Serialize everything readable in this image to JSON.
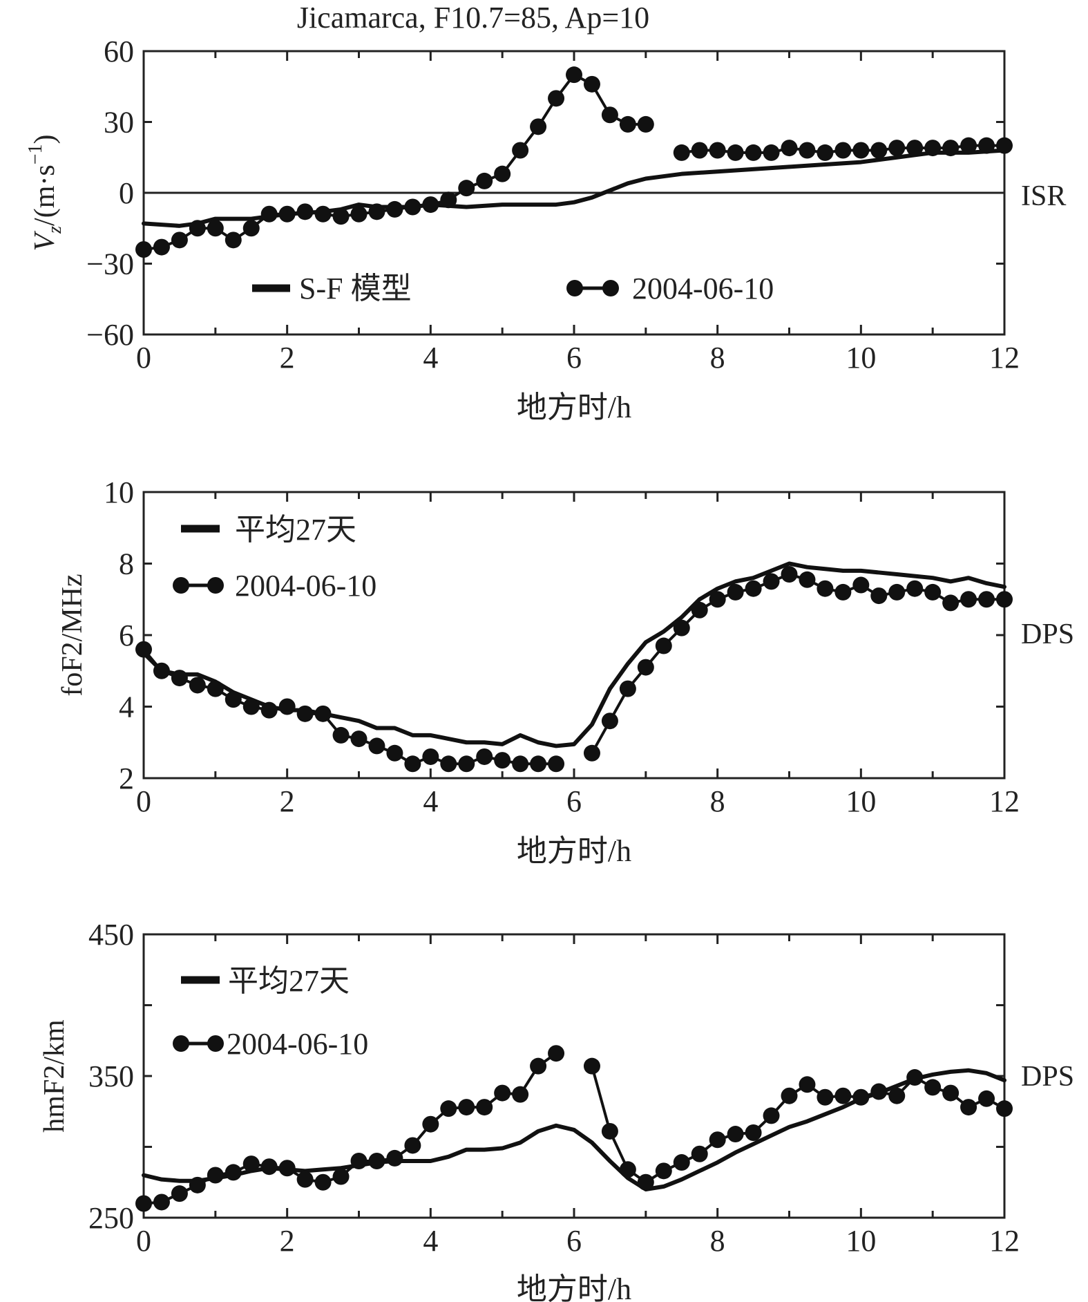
{
  "title": "Jicamarca, F10.7=85, Ap=10",
  "chart_data": [
    {
      "type": "line",
      "ylabel": "V_z/(m·s^-1)",
      "ylabel_main": "V",
      "ylabel_sub": "z",
      "ylabel_unit": "/(m·s",
      "ylabel_sup": "−1",
      "ylabel_close": ")",
      "xlabel": "地方时/h",
      "xlim": [
        0,
        12
      ],
      "ylim": [
        -60,
        60
      ],
      "xticks": [
        "0",
        "2",
        "4",
        "6",
        "8",
        "10",
        "12"
      ],
      "yticks": [
        "−60",
        "−30",
        "0",
        "30",
        "60"
      ],
      "source_label": "ISR",
      "zero_line": true,
      "series": [
        {
          "name": "S-F 模型",
          "style": "line",
          "x": [
            0,
            0.5,
            0.75,
            1.0,
            1.25,
            1.5,
            1.75,
            2.0,
            2.5,
            2.75,
            3.0,
            3.25,
            3.5,
            3.75,
            4.0,
            4.5,
            5.0,
            5.5,
            5.75,
            6.0,
            6.25,
            6.5,
            6.75,
            7.0,
            7.5,
            8.0,
            9.0,
            9.5,
            10.0,
            10.5,
            11.0,
            11.5,
            12.0
          ],
          "y": [
            -13,
            -14,
            -13,
            -11,
            -11,
            -11,
            -10,
            -9,
            -8,
            -7,
            -5,
            -6,
            -6,
            -6,
            -5,
            -6,
            -5,
            -5,
            -5,
            -4,
            -2,
            1,
            4,
            6,
            8,
            9,
            11,
            12,
            13,
            15,
            17,
            17,
            18
          ]
        },
        {
          "name": "2004-06-10",
          "style": "line-marker",
          "segments": [
            {
              "x": [
                0,
                0.25,
                0.5,
                0.75,
                1.0,
                1.25,
                1.5,
                1.75,
                2.0,
                2.25,
                2.5,
                2.75,
                3.0,
                3.25,
                3.5,
                3.75,
                4.0,
                4.25,
                4.5,
                4.75,
                5.0,
                5.25,
                5.5,
                5.75,
                6.0,
                6.25,
                6.5,
                6.75,
                7.0
              ],
              "y": [
                -24,
                -23,
                -20,
                -15,
                -15,
                -20,
                -15,
                -9,
                -9,
                -8,
                -9,
                -10,
                -9,
                -8,
                -7,
                -6,
                -5,
                -3,
                2,
                5,
                8,
                18,
                28,
                40,
                50,
                46,
                33,
                29,
                29
              ]
            },
            {
              "x": [
                7.5,
                7.75,
                8.0,
                8.25,
                8.5,
                8.75,
                9.0,
                9.25,
                9.5,
                9.75,
                10.0,
                10.25,
                10.5,
                10.75,
                11.0,
                11.25,
                11.5,
                11.75,
                12.0
              ],
              "y": [
                17,
                18,
                18,
                17,
                17,
                17,
                19,
                18,
                17,
                18,
                18,
                18,
                19,
                19,
                19,
                19,
                20,
                20,
                20
              ]
            }
          ]
        }
      ],
      "legend": [
        {
          "label": "S-F 模型",
          "style": "line"
        },
        {
          "label": "2004-06-10",
          "style": "line-marker"
        }
      ],
      "legend_placement": "bottom, horizontal"
    },
    {
      "type": "line",
      "ylabel": "foF2/MHz",
      "xlabel": "地方时/h",
      "xlim": [
        0,
        12
      ],
      "ylim": [
        2,
        10
      ],
      "xticks": [
        "0",
        "2",
        "4",
        "6",
        "8",
        "10",
        "12"
      ],
      "yticks": [
        "2",
        "4",
        "6",
        "8",
        "10"
      ],
      "source_label": "DPS",
      "series": [
        {
          "name": "平均27天",
          "style": "line",
          "x": [
            0,
            0.25,
            0.5,
            0.75,
            1.0,
            1.25,
            1.5,
            1.75,
            2.0,
            2.25,
            2.5,
            2.75,
            3.0,
            3.25,
            3.5,
            3.75,
            4.0,
            4.25,
            4.5,
            4.75,
            5.0,
            5.25,
            5.5,
            5.75,
            6.0,
            6.25,
            6.5,
            6.75,
            7.0,
            7.25,
            7.5,
            7.75,
            8.0,
            8.25,
            8.5,
            8.75,
            9.0,
            9.25,
            9.5,
            9.75,
            10.0,
            10.25,
            10.5,
            10.75,
            11.0,
            11.25,
            11.5,
            11.75,
            12.0
          ],
          "y": [
            5.5,
            5.0,
            4.9,
            4.9,
            4.7,
            4.4,
            4.2,
            4.0,
            3.9,
            3.9,
            3.8,
            3.7,
            3.6,
            3.4,
            3.4,
            3.2,
            3.2,
            3.1,
            3.0,
            3.0,
            2.95,
            3.2,
            3.0,
            2.9,
            2.95,
            3.5,
            4.5,
            5.2,
            5.8,
            6.1,
            6.5,
            7.0,
            7.3,
            7.5,
            7.6,
            7.8,
            8.0,
            7.9,
            7.85,
            7.8,
            7.8,
            7.75,
            7.7,
            7.65,
            7.6,
            7.5,
            7.6,
            7.45,
            7.35
          ]
        },
        {
          "name": "2004-06-10",
          "style": "line-marker",
          "segments": [
            {
              "x": [
                0,
                0.25,
                0.5,
                0.75,
                1.0,
                1.25,
                1.5,
                1.75,
                2.0,
                2.25,
                2.5,
                2.75,
                3.0,
                3.25,
                3.5,
                3.75,
                4.0,
                4.25,
                4.5,
                4.75,
                5.0,
                5.25,
                5.5,
                5.75
              ],
              "y": [
                5.6,
                5.0,
                4.8,
                4.6,
                4.5,
                4.2,
                4.0,
                3.9,
                4.0,
                3.8,
                3.8,
                3.2,
                3.1,
                2.9,
                2.7,
                2.4,
                2.6,
                2.4,
                2.4,
                2.6,
                2.5,
                2.4,
                2.4,
                2.4
              ]
            },
            {
              "x": [
                6.25,
                6.5,
                6.75,
                7.0,
                7.25,
                7.5,
                7.75,
                8.0,
                8.25,
                8.5,
                8.75,
                9.0,
                9.25,
                9.5,
                9.75,
                10.0,
                10.25,
                10.5,
                10.75,
                11.0,
                11.25,
                11.5,
                11.75,
                12.0
              ],
              "y": [
                2.7,
                3.6,
                4.5,
                5.1,
                5.7,
                6.2,
                6.7,
                7.0,
                7.2,
                7.3,
                7.5,
                7.7,
                7.55,
                7.3,
                7.2,
                7.4,
                7.1,
                7.2,
                7.3,
                7.2,
                6.9,
                7.0,
                7.0,
                7.0
              ]
            }
          ]
        }
      ],
      "legend": [
        {
          "label": "平均27天",
          "style": "line"
        },
        {
          "label": "2004-06-10",
          "style": "line-marker"
        }
      ],
      "legend_placement": "top-left"
    },
    {
      "type": "line",
      "ylabel": "hmF2/km",
      "xlabel": "地方时/h",
      "xlim": [
        0,
        12
      ],
      "ylim": [
        250,
        450
      ],
      "xticks": [
        "0",
        "2",
        "4",
        "6",
        "8",
        "10",
        "12"
      ],
      "yticks": [
        "250",
        "350",
        "450"
      ],
      "source_label": "DPS",
      "series": [
        {
          "name": "平均27天",
          "style": "line",
          "x": [
            0,
            0.25,
            0.5,
            0.75,
            1.0,
            1.25,
            1.5,
            1.75,
            2.0,
            2.25,
            2.5,
            2.75,
            3.0,
            3.25,
            3.5,
            3.75,
            4.0,
            4.25,
            4.5,
            4.75,
            5.0,
            5.25,
            5.5,
            5.75,
            6.0,
            6.25,
            6.5,
            6.75,
            7.0,
            7.25,
            7.5,
            7.75,
            8.0,
            8.25,
            8.5,
            8.75,
            9.0,
            9.25,
            9.5,
            9.75,
            10.0,
            10.25,
            10.5,
            10.75,
            11.0,
            11.25,
            11.5,
            11.75,
            12.0
          ],
          "y": [
            280,
            277,
            276,
            276,
            278,
            280,
            283,
            285,
            284,
            283,
            284,
            285,
            287,
            289,
            290,
            290,
            290,
            293,
            298,
            298,
            299,
            303,
            311,
            315,
            312,
            303,
            290,
            278,
            270,
            272,
            277,
            283,
            289,
            296,
            302,
            308,
            314,
            318,
            323,
            328,
            334,
            338,
            343,
            348,
            351,
            353,
            354,
            352,
            347
          ]
        },
        {
          "name": "2004-06-10",
          "style": "line-marker",
          "segments": [
            {
              "x": [
                0,
                0.25,
                0.5,
                0.75,
                1.0,
                1.25,
                1.5,
                1.75,
                2.0,
                2.25,
                2.5,
                2.75,
                3.0,
                3.25,
                3.5,
                3.75,
                4.0,
                4.25,
                4.5,
                4.75,
                5.0,
                5.25,
                5.5,
                5.75
              ],
              "y": [
                260,
                261,
                267,
                273,
                280,
                282,
                288,
                286,
                285,
                277,
                275,
                279,
                290,
                290,
                292,
                301,
                316,
                327,
                328,
                328,
                338,
                337,
                357,
                366
              ]
            },
            {
              "x": [
                6.25,
                6.5,
                6.75,
                7.0,
                7.25,
                7.5,
                7.75,
                8.0,
                8.25,
                8.5,
                8.75,
                9.0,
                9.25,
                9.5,
                9.75,
                10.0,
                10.25,
                10.5,
                10.75,
                11.0,
                11.25,
                11.5,
                11.75,
                12.0
              ],
              "y": [
                357,
                311,
                284,
                275,
                283,
                289,
                295,
                305,
                309,
                310,
                322,
                336,
                344,
                335,
                336,
                335,
                339,
                336,
                349,
                342,
                338,
                328,
                334,
                327
              ]
            }
          ]
        }
      ],
      "legend": [
        {
          "label": "平均27天",
          "style": "line"
        },
        {
          "label": "2004-06-10",
          "style": "line-marker"
        }
      ],
      "legend_placement": "top-left, stacked"
    }
  ]
}
